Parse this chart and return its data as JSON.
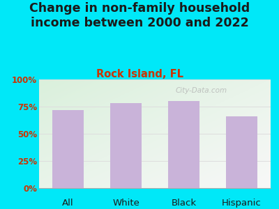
{
  "title": "Change in non-family household\nincome between 2000 and 2022",
  "subtitle": "Rock Island, FL",
  "categories": [
    "All",
    "White",
    "Black",
    "Hispanic"
  ],
  "values": [
    72,
    78,
    80,
    66
  ],
  "bar_color": "#c9b3d9",
  "title_fontsize": 12.5,
  "subtitle_fontsize": 10.5,
  "title_color": "#1a1a1a",
  "subtitle_color": "#cc3300",
  "tick_label_color": "#cc3300",
  "xtick_label_color": "#1a1a1a",
  "ytick_labels": [
    "0%",
    "25%",
    "50%",
    "75%",
    "100%"
  ],
  "ytick_values": [
    0,
    25,
    50,
    75,
    100
  ],
  "ylim": [
    0,
    100
  ],
  "background_outer": "#00e8f8",
  "bg_color_topleft": "#daf0dc",
  "bg_color_bottomright": "#f0f0f0",
  "watermark": "City-Data.com",
  "grid_color": "#dddddd"
}
